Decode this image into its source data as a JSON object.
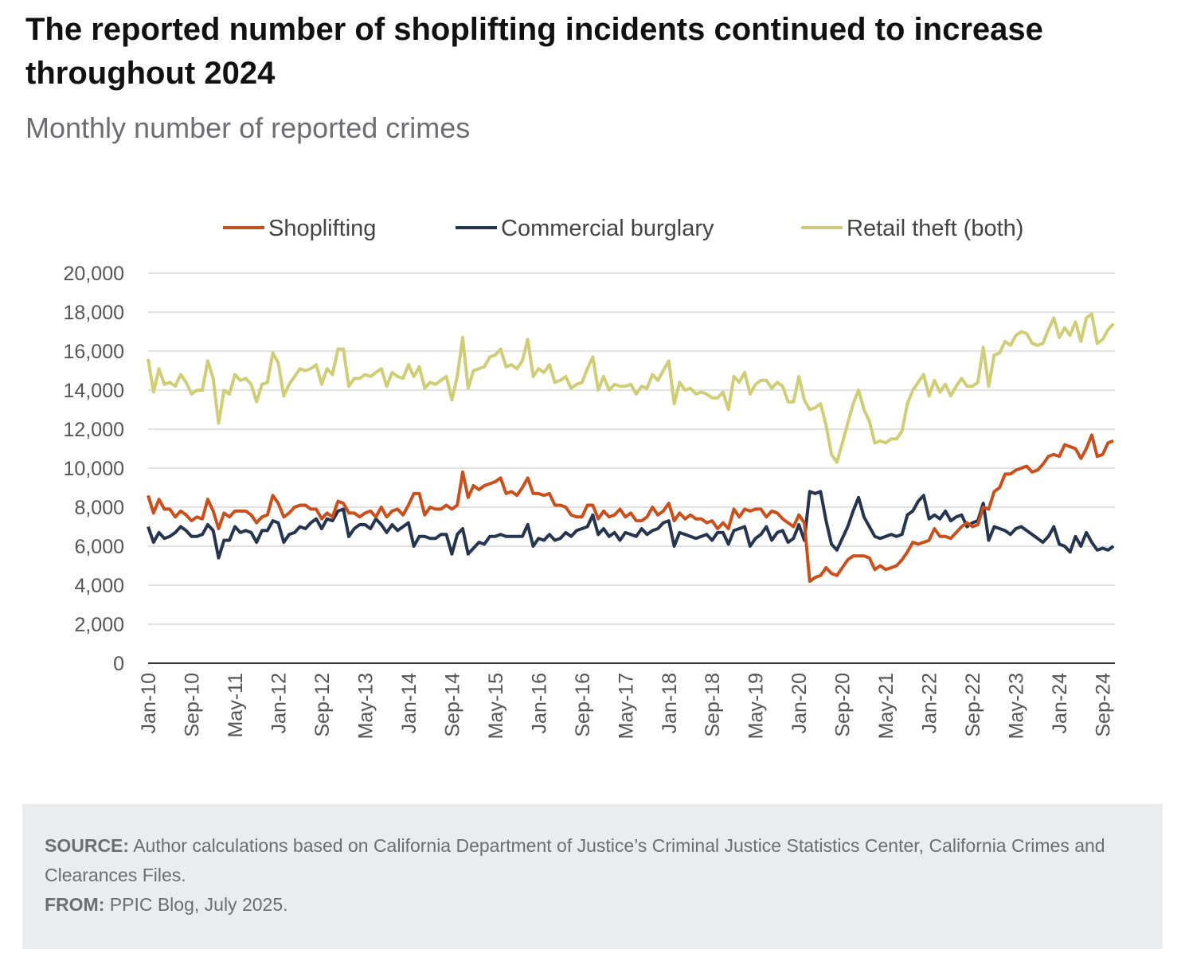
{
  "title": "The reported number of shoplifting incidents continued to increase throughout 2024",
  "subtitle": "Monthly number of reported crimes",
  "source": {
    "source_label": "SOURCE:",
    "source_text": "Author calculations based on California Department of Justice’s Criminal Justice Statistics Center, California Crimes and Clearances Files.",
    "from_label": "FROM:",
    "from_text": "PPIC Blog, July 2025."
  },
  "chart_data": {
    "type": "line",
    "title": "The reported number of shoplifting incidents continued to increase throughout 2024",
    "subtitle": "Monthly number of reported crimes",
    "xlabel": "",
    "ylabel": "",
    "x_start": "Jan-10",
    "x_step": "month",
    "xticks": [
      "Jan-10",
      "Sep-10",
      "May-11",
      "Jan-12",
      "Sep-12",
      "May-13",
      "Jan-14",
      "Sep-14",
      "May-15",
      "Jan-16",
      "Sep-16",
      "May-17",
      "Jan-18",
      "Sep-18",
      "May-19",
      "Jan-20",
      "Sep-20",
      "May-21",
      "Jan-22",
      "Sep-22",
      "May-23",
      "Jan-24",
      "Sep-24"
    ],
    "xtick_every_months": 8,
    "yticks": [
      0,
      2000,
      4000,
      6000,
      8000,
      10000,
      12000,
      14000,
      16000,
      18000,
      20000
    ],
    "ytick_labels": [
      "0",
      "2,000",
      "4,000",
      "6,000",
      "8,000",
      "10,000",
      "12,000",
      "14,000",
      "16,000",
      "18,000",
      "20,000"
    ],
    "ylim": [
      0,
      20000
    ],
    "grid": "horizontal",
    "legend_position": "top",
    "series": [
      {
        "name": "Shoplifting",
        "color": "#c9501c",
        "values": [
          8600,
          7700,
          8400,
          7900,
          7900,
          7500,
          7800,
          7600,
          7300,
          7500,
          7400,
          8400,
          7800,
          6900,
          7700,
          7500,
          7800,
          7800,
          7800,
          7600,
          7200,
          7500,
          7600,
          8600,
          8200,
          7500,
          7700,
          8000,
          8100,
          8100,
          7900,
          7900,
          7400,
          7700,
          7500,
          8300,
          8200,
          7700,
          7700,
          7500,
          7700,
          7800,
          7500,
          8000,
          7500,
          7800,
          7900,
          7600,
          8100,
          8700,
          8700,
          7600,
          8000,
          7900,
          7900,
          8100,
          7900,
          8100,
          9800,
          8500,
          9100,
          8900,
          9100,
          9200,
          9300,
          9500,
          8700,
          8800,
          8600,
          9000,
          9500,
          8700,
          8700,
          8600,
          8700,
          8100,
          8100,
          8000,
          7600,
          7500,
          7500,
          8100,
          8100,
          7400,
          7800,
          7500,
          7600,
          7900,
          7500,
          7700,
          7300,
          7300,
          7500,
          8000,
          7600,
          7800,
          8200,
          7300,
          7700,
          7400,
          7600,
          7400,
          7400,
          7200,
          7300,
          6900,
          7200,
          6900,
          7900,
          7500,
          7900,
          7800,
          7900,
          7900,
          7500,
          7800,
          7700,
          7400,
          7200,
          7000,
          7600,
          7200,
          4200,
          4400,
          4500,
          4900,
          4600,
          4500,
          4900,
          5300,
          5500,
          5500,
          5500,
          5400,
          4800,
          5000,
          4800,
          4900,
          5000,
          5300,
          5700,
          6200,
          6100,
          6200,
          6300,
          6900,
          6500,
          6500,
          6400,
          6700,
          7000,
          7200,
          7000,
          7100,
          8000,
          7900,
          8800,
          9000,
          9700,
          9700,
          9900,
          10000,
          10100,
          9800,
          9900,
          10200,
          10600,
          10700,
          10600,
          11200,
          11100,
          11000,
          10500,
          11000,
          11700,
          10600,
          10700,
          11300,
          11400
        ]
      },
      {
        "name": "Commercial burglary",
        "color": "#253550",
        "values": [
          7000,
          6200,
          6700,
          6400,
          6500,
          6700,
          7000,
          6800,
          6500,
          6500,
          6600,
          7100,
          6800,
          5400,
          6300,
          6300,
          7000,
          6700,
          6800,
          6700,
          6200,
          6800,
          6800,
          7300,
          7200,
          6200,
          6600,
          6700,
          7000,
          6900,
          7200,
          7400,
          6900,
          7400,
          7300,
          7800,
          7900,
          6500,
          6900,
          7100,
          7100,
          6900,
          7400,
          7100,
          6700,
          7100,
          6800,
          7000,
          7200,
          6000,
          6500,
          6500,
          6400,
          6400,
          6600,
          6600,
          5600,
          6600,
          6900,
          5600,
          5900,
          6200,
          6100,
          6500,
          6500,
          6600,
          6500,
          6500,
          6500,
          6500,
          7100,
          6000,
          6400,
          6300,
          6600,
          6300,
          6400,
          6700,
          6500,
          6800,
          6900,
          7000,
          7600,
          6600,
          6900,
          6500,
          6700,
          6300,
          6700,
          6600,
          6500,
          6900,
          6600,
          6800,
          6900,
          7200,
          7300,
          6000,
          6700,
          6600,
          6500,
          6400,
          6500,
          6600,
          6300,
          6700,
          6700,
          6100,
          6800,
          6900,
          7000,
          6000,
          6400,
          6600,
          7000,
          6300,
          6700,
          6800,
          6200,
          6400,
          7100,
          6300,
          8800,
          8700,
          8800,
          7300,
          6100,
          5800,
          6400,
          7000,
          7800,
          8500,
          7500,
          7000,
          6500,
          6400,
          6500,
          6600,
          6500,
          6600,
          7600,
          7800,
          8300,
          8600,
          7400,
          7600,
          7400,
          7800,
          7300,
          7500,
          7600,
          7000,
          7200,
          7300,
          8200,
          6300,
          7000,
          6900,
          6800,
          6600,
          6900,
          7000,
          6800,
          6600,
          6400,
          6200,
          6500,
          7000,
          6100,
          6000,
          5700,
          6500,
          6000,
          6700,
          6200,
          5800,
          5900,
          5800,
          6000
        ]
      },
      {
        "name": "Retail theft (both)",
        "color": "#cfcd75",
        "values": [
          15600,
          13900,
          15100,
          14300,
          14400,
          14200,
          14800,
          14400,
          13800,
          14000,
          14000,
          15500,
          14600,
          12300,
          14000,
          13800,
          14800,
          14500,
          14600,
          14300,
          13400,
          14300,
          14400,
          15900,
          15400,
          13700,
          14300,
          14700,
          15100,
          15000,
          15100,
          15300,
          14300,
          15100,
          14800,
          16100,
          16100,
          14200,
          14600,
          14600,
          14800,
          14700,
          14900,
          15100,
          14200,
          14900,
          14700,
          14600,
          15300,
          14700,
          15200,
          14100,
          14400,
          14300,
          14500,
          14700,
          13500,
          14700,
          16700,
          14100,
          15000,
          15100,
          15200,
          15700,
          15800,
          16100,
          15200,
          15300,
          15100,
          15500,
          16600,
          14700,
          15100,
          14900,
          15300,
          14400,
          14500,
          14700,
          14100,
          14300,
          14400,
          15100,
          15700,
          14000,
          14700,
          14000,
          14300,
          14200,
          14200,
          14300,
          13800,
          14200,
          14100,
          14800,
          14500,
          15000,
          15500,
          13300,
          14400,
          14000,
          14100,
          13800,
          13900,
          13800,
          13600,
          13600,
          13900,
          13000,
          14700,
          14400,
          14900,
          13800,
          14300,
          14500,
          14500,
          14100,
          14400,
          14200,
          13400,
          13400,
          14700,
          13500,
          13000,
          13100,
          13300,
          12200,
          10700,
          10300,
          11300,
          12300,
          13300,
          14000,
          13000,
          12400,
          11300,
          11400,
          11300,
          11500,
          11500,
          11900,
          13300,
          14000,
          14400,
          14800,
          13700,
          14500,
          13900,
          14300,
          13700,
          14200,
          14600,
          14200,
          14200,
          14400,
          16200,
          14200,
          15800,
          15900,
          16500,
          16300,
          16800,
          17000,
          16900,
          16400,
          16300,
          16400,
          17100,
          17700,
          16700,
          17200,
          16800,
          17500,
          16500,
          17700,
          17900,
          16400,
          16600,
          17100,
          17400
        ]
      }
    ]
  }
}
